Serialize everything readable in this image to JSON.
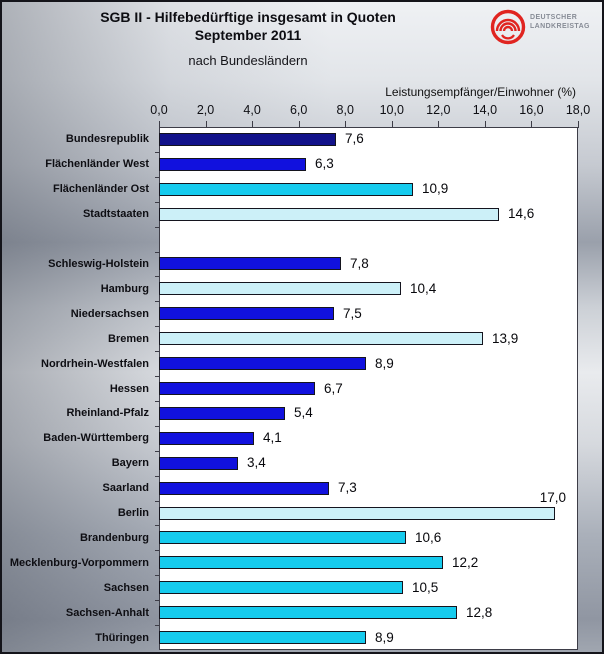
{
  "header": {
    "title_line1": "SGB II - Hilfebedürftige insgesamt in Quoten",
    "title_line2": "September 2011",
    "subtitle": "nach Bundesländern",
    "logo": {
      "icon": "landkreistag-arcs-logo",
      "color": "#e02420",
      "org_line1": "DEUTSCHER",
      "org_line2": "LANDKREISTAG"
    }
  },
  "chart_data": {
    "type": "bar",
    "orientation": "horizontal",
    "title": "SGB II - Hilfebedürftige insgesamt in Quoten September 2011",
    "subtitle": "nach Bundesländern",
    "xlabel": "Leistungsempfänger/Einwohner (%)",
    "xlim": [
      0,
      18
    ],
    "grid": false,
    "xticks": [
      {
        "value": 0,
        "label": "0,0"
      },
      {
        "value": 2,
        "label": "2,0"
      },
      {
        "value": 4,
        "label": "4,0"
      },
      {
        "value": 6,
        "label": "6,0"
      },
      {
        "value": 8,
        "label": "8,0"
      },
      {
        "value": 10,
        "label": "10,0"
      },
      {
        "value": 12,
        "label": "12,0"
      },
      {
        "value": 14,
        "label": "14,0"
      },
      {
        "value": 16,
        "label": "16,0"
      },
      {
        "value": 18,
        "label": "18,0"
      }
    ],
    "colors": {
      "navy": "#12128a",
      "blue": "#1111de",
      "cyan": "#16cbee",
      "pale": "#ccf0f8"
    },
    "rows": [
      {
        "label": "Bundesrepublik",
        "value": 7.6,
        "display": "7,6",
        "color": "navy"
      },
      {
        "label": "Flächenländer West",
        "value": 6.3,
        "display": "6,3",
        "color": "blue"
      },
      {
        "label": "Flächenländer Ost",
        "value": 10.9,
        "display": "10,9",
        "color": "cyan"
      },
      {
        "label": "Stadtstaaten",
        "value": 14.6,
        "display": "14,6",
        "color": "pale"
      },
      {
        "spacer": true
      },
      {
        "label": "Schleswig-Holstein",
        "value": 7.8,
        "display": "7,8",
        "color": "blue"
      },
      {
        "label": "Hamburg",
        "value": 10.4,
        "display": "10,4",
        "color": "pale"
      },
      {
        "label": "Niedersachsen",
        "value": 7.5,
        "display": "7,5",
        "color": "blue"
      },
      {
        "label": "Bremen",
        "value": 13.9,
        "display": "13,9",
        "color": "pale"
      },
      {
        "label": "Nordrhein-Westfalen",
        "value": 8.9,
        "display": "8,9",
        "color": "blue"
      },
      {
        "label": "Hessen",
        "value": 6.7,
        "display": "6,7",
        "color": "blue"
      },
      {
        "label": "Rheinland-Pfalz",
        "value": 5.4,
        "display": "5,4",
        "color": "blue"
      },
      {
        "label": "Baden-Württemberg",
        "value": 4.1,
        "display": "4,1",
        "color": "blue"
      },
      {
        "label": "Bayern",
        "value": 3.4,
        "display": "3,4",
        "color": "blue"
      },
      {
        "label": "Saarland",
        "value": 7.3,
        "display": "7,3",
        "color": "blue"
      },
      {
        "label": "Berlin",
        "value": 17.0,
        "display": "17,0",
        "color": "pale",
        "value_label_position": "above"
      },
      {
        "label": "Brandenburg",
        "value": 10.6,
        "display": "10,6",
        "color": "cyan"
      },
      {
        "label": "Mecklenburg-Vorpommern",
        "value": 12.2,
        "display": "12,2",
        "color": "cyan"
      },
      {
        "label": "Sachsen",
        "value": 10.5,
        "display": "10,5",
        "color": "cyan"
      },
      {
        "label": "Sachsen-Anhalt",
        "value": 12.8,
        "display": "12,8",
        "color": "cyan"
      },
      {
        "label": "Thüringen",
        "value": 8.9,
        "display": "8,9",
        "color": "cyan"
      }
    ]
  }
}
